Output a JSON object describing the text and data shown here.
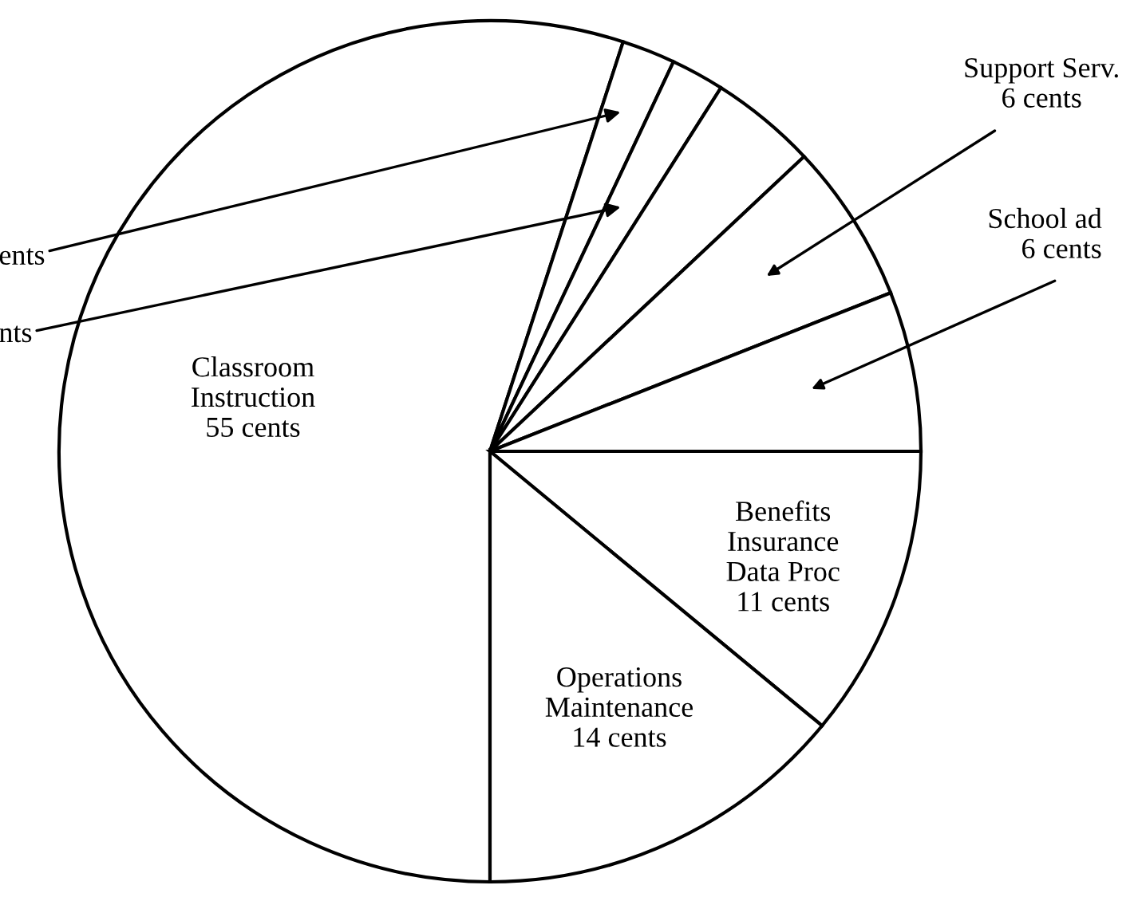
{
  "chart_data": {
    "type": "pie",
    "categories": [
      "Classroom\nInstruction",
      null,
      null,
      null,
      "Support Serv.",
      "School ad",
      "Benefits\nInsurance\nData Proc",
      "Operations\nMaintenance"
    ],
    "values": [
      55,
      2,
      2,
      4,
      6,
      6,
      11,
      14
    ],
    "value_labels": [
      "55 cents",
      null,
      null,
      null,
      "6 cents",
      "6 cents",
      "11 cents",
      "14 cents"
    ],
    "colors": [
      "#ffffff",
      "#ffffff",
      "#ffffff",
      "#ffffff",
      "#ffffff",
      "#ffffff",
      "#ffffff",
      "#ffffff"
    ],
    "annotations": [
      "ents",
      "nts"
    ]
  }
}
